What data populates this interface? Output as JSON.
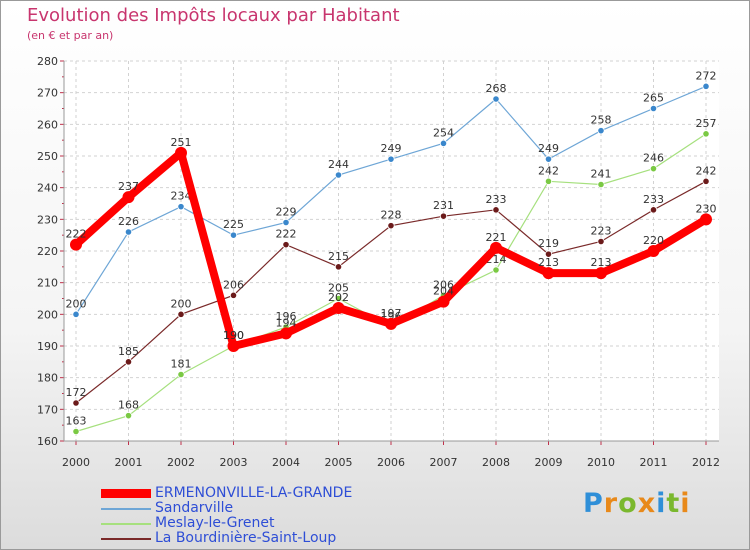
{
  "header": {
    "title": "Evolution des Impôts locaux par Habitant",
    "subtitle": "(en € et par an)"
  },
  "chart_data": {
    "type": "line",
    "title": "Evolution des Impôts locaux par Habitant",
    "subtitle": "(en € et par an)",
    "xlabel": "",
    "ylabel": "",
    "x": [
      "2000",
      "2001",
      "2002",
      "2003",
      "2004",
      "2005",
      "2006",
      "2007",
      "2008",
      "2009",
      "2010",
      "2011",
      "2012"
    ],
    "ylim": [
      160,
      280
    ],
    "yticks": [
      160,
      170,
      180,
      190,
      200,
      210,
      220,
      230,
      240,
      250,
      260,
      270,
      280
    ],
    "grid": true,
    "legend_position": "bottom-left",
    "series": [
      {
        "name": "Sandarville",
        "color": "#6ea6d6",
        "point_color": "#3a87cc",
        "values": [
          200,
          226,
          234,
          225,
          229,
          244,
          249,
          254,
          268,
          249,
          258,
          265,
          272
        ]
      },
      {
        "name": "Meslay-le-Grenet",
        "color": "#a6e07e",
        "point_color": "#7ac943",
        "values": [
          163,
          168,
          181,
          190,
          196,
          205,
          196,
          206,
          214,
          242,
          241,
          246,
          257
        ]
      },
      {
        "name": "La Bourdinière-Saint-Loup",
        "color": "#7a2a2a",
        "point_color": "#6b1a1a",
        "values": [
          172,
          185,
          200,
          206,
          222,
          215,
          228,
          231,
          233,
          219,
          223,
          233,
          242
        ]
      },
      {
        "name": "ERMENONVILLE-LA-GRANDE",
        "color": "#ff0000",
        "point_color": "#ff0000",
        "thick": true,
        "values": [
          222,
          237,
          251,
          190,
          194,
          202,
          197,
          204,
          221,
          213,
          213,
          220,
          230
        ]
      }
    ]
  },
  "legend": {
    "items": [
      {
        "label": "ERMENONVILLE-LA-GRANDE",
        "color": "#ff0000"
      },
      {
        "label": "Sandarville",
        "color": "#6ea6d6"
      },
      {
        "label": "Meslay-le-Grenet",
        "color": "#a6e07e"
      },
      {
        "label": "La Bourdinière-Saint-Loup",
        "color": "#7a2a2a"
      }
    ]
  },
  "logo": {
    "text": "Proxiti",
    "letters": [
      "P",
      "r",
      "o",
      "x",
      "i",
      "t",
      "i"
    ],
    "colors": [
      "#2f8fd8",
      "#e8891a",
      "#7ab82e",
      "#e8891a",
      "#2f8fd8",
      "#7ab82e",
      "#e8891a"
    ]
  }
}
